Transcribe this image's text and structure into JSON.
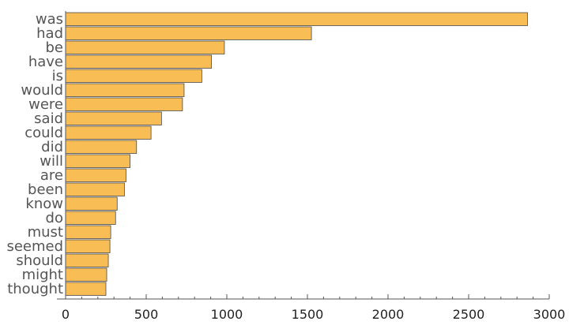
{
  "chart_data": {
    "type": "bar",
    "orientation": "horizontal",
    "categories": [
      "was",
      "had",
      "be",
      "have",
      "is",
      "would",
      "were",
      "said",
      "could",
      "did",
      "will",
      "are",
      "been",
      "know",
      "do",
      "must",
      "seemed",
      "should",
      "might",
      "thought"
    ],
    "values": [
      2865,
      1525,
      985,
      905,
      845,
      735,
      725,
      595,
      530,
      440,
      400,
      375,
      365,
      320,
      310,
      280,
      275,
      265,
      255,
      250
    ],
    "xticks": [
      0,
      500,
      1000,
      1500,
      2000,
      2500,
      3000
    ],
    "xlim": [
      0,
      3000
    ],
    "title": "",
    "xlabel": "",
    "ylabel": "",
    "bar_color": "#f9bd55",
    "grid": false
  }
}
